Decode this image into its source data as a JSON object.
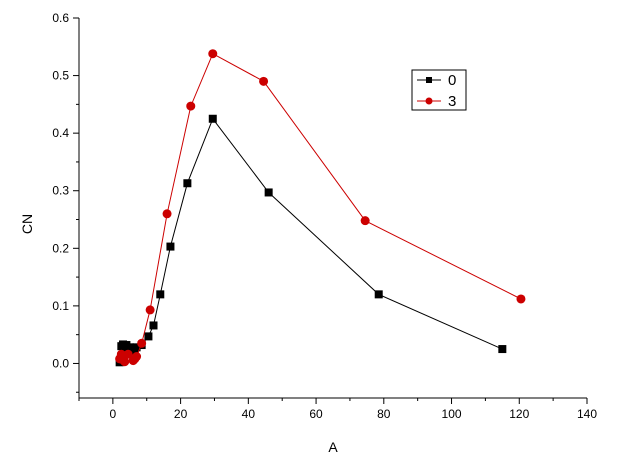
{
  "chart_data": {
    "type": "line",
    "title": "",
    "xlabel": "A",
    "ylabel": "CN",
    "xlim": [
      -10,
      140
    ],
    "ylim": [
      -0.06,
      0.6
    ],
    "xticks": [
      0,
      20,
      40,
      60,
      80,
      100,
      120,
      140
    ],
    "yticks": [
      0.0,
      0.1,
      0.2,
      0.3,
      0.4,
      0.5,
      0.6
    ],
    "xtick_labels": [
      "0",
      "20",
      "40",
      "60",
      "80",
      "100",
      "120",
      "140"
    ],
    "ytick_labels": [
      "0.0",
      "0.1",
      "0.2",
      "0.3",
      "0.4",
      "0.5",
      "0.6"
    ],
    "grid": false,
    "legend_position": "top-right",
    "series": [
      {
        "name": "0",
        "color": "#000000",
        "marker": "square",
        "x": [
          2.0,
          2.5,
          3.0,
          3.5,
          4.0,
          4.5,
          5.0,
          5.5,
          6.0,
          6.5,
          7.0,
          8.5,
          10.5,
          12.0,
          14.0,
          17.0,
          22.0,
          29.5,
          46.0,
          78.5,
          115.0
        ],
        "y": [
          0.002,
          0.03,
          0.033,
          0.02,
          0.032,
          0.024,
          0.028,
          0.022,
          0.025,
          0.026,
          0.028,
          0.032,
          0.047,
          0.066,
          0.12,
          0.203,
          0.313,
          0.425,
          0.297,
          0.12,
          0.025
        ]
      },
      {
        "name": "3",
        "color": "#cc0000",
        "marker": "circle",
        "x": [
          2.0,
          2.5,
          3.0,
          3.5,
          4.5,
          6.0,
          6.5,
          7.0,
          8.5,
          11.0,
          16.0,
          23.0,
          29.5,
          44.5,
          74.5,
          120.5
        ],
        "y": [
          0.008,
          0.016,
          0.006,
          0.003,
          0.016,
          0.005,
          0.008,
          0.012,
          0.035,
          0.093,
          0.26,
          0.447,
          0.538,
          0.49,
          0.248,
          0.112
        ]
      }
    ]
  }
}
